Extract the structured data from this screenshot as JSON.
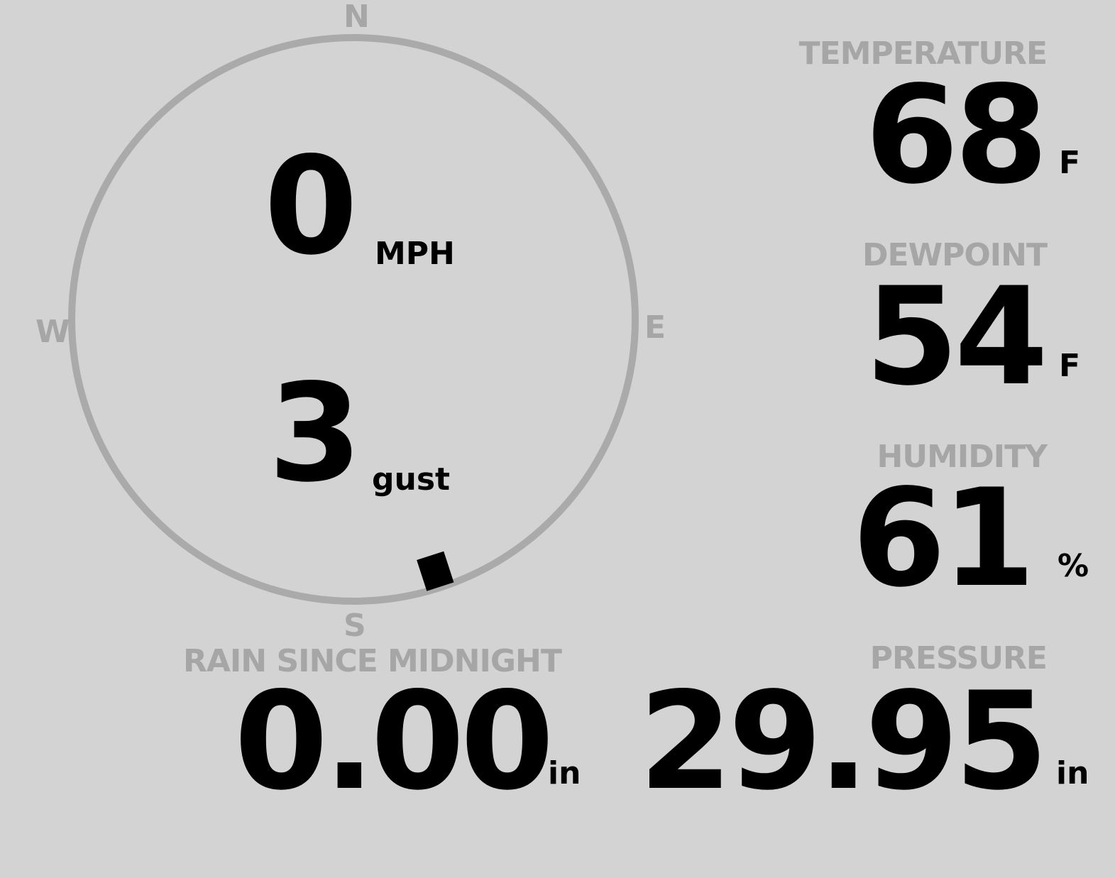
{
  "wind": {
    "speed": "0",
    "speed_unit": "MPH",
    "gust": "3",
    "gust_label": "gust",
    "direction_deg": 162,
    "compass": {
      "n": "N",
      "e": "E",
      "s": "S",
      "w": "W"
    }
  },
  "temperature": {
    "label": "TEMPERATURE",
    "value": "68",
    "unit": "F"
  },
  "dewpoint": {
    "label": "DEWPOINT",
    "value": "54",
    "unit": "F"
  },
  "humidity": {
    "label": "HUMIDITY",
    "value": "61",
    "unit": "%"
  },
  "rain": {
    "label": "RAIN SINCE MIDNIGHT",
    "value": "0.00",
    "unit": "in"
  },
  "pressure": {
    "label": "PRESSURE",
    "value": "29.95",
    "unit": "in"
  },
  "colors": {
    "background": "#d3d3d3",
    "label": "#a6a6a6",
    "value": "#000000",
    "dial": "#aaaaaa"
  }
}
